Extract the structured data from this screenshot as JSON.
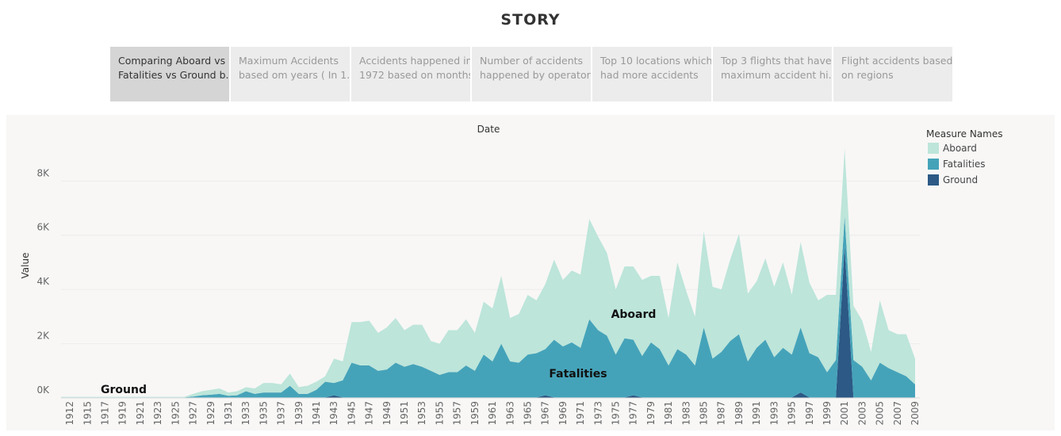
{
  "header": {
    "title": "STORY"
  },
  "tabs": [
    {
      "lines": [
        "Comparing Aboard vs",
        "Fatalities vs Ground b.."
      ],
      "selected": true
    },
    {
      "lines": [
        "Maximum Accidents",
        "based om years ( In 1.."
      ]
    },
    {
      "lines": [
        "Accidents happened in",
        "1972 based on months"
      ]
    },
    {
      "lines": [
        "Number of accidents",
        "happened by operators"
      ]
    },
    {
      "lines": [
        "Top 10 locations which",
        "had more accidents"
      ]
    },
    {
      "lines": [
        "Top 3 flights that have",
        "maximum accident hi.."
      ]
    },
    {
      "lines": [
        "Flight accidents based",
        "on regions"
      ]
    }
  ],
  "chart_data": {
    "type": "area",
    "stacked": true,
    "x_label": "Date",
    "y_label": "Value",
    "legend_title": "Measure Names",
    "legend": "right",
    "grid": true,
    "annotations": [
      "Aboard",
      "Fatalities",
      "Ground"
    ],
    "categories": [
      null,
      "1912",
      null,
      "1915",
      null,
      "1917",
      null,
      "1919",
      null,
      "1921",
      null,
      "1923",
      null,
      "1925",
      null,
      "1927",
      null,
      "1929",
      null,
      "1931",
      null,
      "1933",
      null,
      "1935",
      null,
      "1937",
      null,
      "1939",
      null,
      "1941",
      null,
      "1943",
      null,
      "1945",
      null,
      "1947",
      null,
      "1949",
      null,
      "1951",
      null,
      "1953",
      null,
      "1955",
      null,
      "1957",
      null,
      "1959",
      null,
      "1961",
      null,
      "1963",
      null,
      "1965",
      null,
      "1967",
      null,
      "1969",
      null,
      "1971",
      null,
      "1973",
      null,
      "1975",
      null,
      "1977",
      null,
      "1979",
      null,
      "1981",
      null,
      "1983",
      null,
      "1985",
      null,
      "1987",
      null,
      "1989",
      null,
      "1991",
      null,
      "1993",
      null,
      "1995",
      null,
      "1997",
      null,
      "1999",
      null,
      "2001",
      null,
      "2003",
      null,
      "2005",
      null,
      "2007",
      null,
      "2009"
    ],
    "ylim": [
      0,
      9500
    ],
    "yticks": [
      {
        "value": 0,
        "label": "0K"
      },
      {
        "value": 2000,
        "label": "2K"
      },
      {
        "value": 4000,
        "label": "4K"
      },
      {
        "value": 6000,
        "label": "6K"
      },
      {
        "value": 8000,
        "label": "8K"
      }
    ],
    "series": [
      {
        "name": "Aboard",
        "color": "#bde5da",
        "values": [
          20,
          20,
          20,
          20,
          20,
          20,
          20,
          20,
          20,
          20,
          20,
          20,
          20,
          20,
          20,
          100,
          150,
          180,
          200,
          120,
          150,
          150,
          200,
          350,
          350,
          300,
          450,
          250,
          300,
          300,
          200,
          900,
          700,
          1500,
          1600,
          1650,
          1400,
          1550,
          1650,
          1350,
          1450,
          1550,
          1100,
          1150,
          1550,
          1550,
          1700,
          1400,
          1950,
          1950,
          2500,
          1600,
          1800,
          2200,
          1950,
          2400,
          2950,
          2450,
          2650,
          2700,
          3700,
          3450,
          3050,
          2400,
          2650,
          2700,
          2800,
          2450,
          2700,
          1750,
          3200,
          2350,
          1800,
          3550,
          2650,
          2300,
          3000,
          3700,
          2500,
          2450,
          3000,
          2600,
          3150,
          2200,
          3150,
          2600,
          2100,
          2850,
          2400,
          2500,
          2000,
          1700,
          1050,
          2300,
          1400,
          1400,
          1550,
          950
        ]
      },
      {
        "name": "Fatalities",
        "color": "#45a3b9",
        "values": [
          15,
          15,
          15,
          15,
          15,
          15,
          15,
          15,
          15,
          15,
          15,
          15,
          15,
          15,
          15,
          30,
          80,
          100,
          130,
          60,
          80,
          230,
          130,
          180,
          180,
          180,
          430,
          130,
          130,
          280,
          580,
          450,
          630,
          1280,
          1180,
          1180,
          980,
          1030,
          1280,
          1130,
          1230,
          1130,
          980,
          830,
          930,
          930,
          1180,
          980,
          1580,
          1330,
          1980,
          1330,
          1280,
          1580,
          1630,
          1700,
          2130,
          1880,
          2030,
          1830,
          2880,
          2480,
          2280,
          1580,
          2180,
          2050,
          1530,
          2030,
          1780,
          1180,
          1780,
          1580,
          1180,
          2580,
          1430,
          1680,
          2080,
          2330,
          1330,
          1830,
          2130,
          1480,
          1830,
          1580,
          2400,
          1630,
          1480,
          930,
          1380,
          1100,
          1380,
          1130,
          630,
          1280,
          1080,
          930,
          780,
          480
        ]
      },
      {
        "name": "Ground",
        "color": "#2c5985",
        "values": [
          5,
          5,
          5,
          5,
          5,
          5,
          5,
          5,
          5,
          5,
          5,
          5,
          5,
          5,
          5,
          20,
          20,
          20,
          20,
          20,
          20,
          20,
          20,
          20,
          20,
          20,
          20,
          20,
          20,
          20,
          20,
          100,
          20,
          20,
          20,
          20,
          20,
          20,
          20,
          20,
          20,
          20,
          20,
          20,
          20,
          20,
          20,
          20,
          20,
          20,
          20,
          20,
          20,
          20,
          20,
          100,
          20,
          20,
          20,
          20,
          20,
          20,
          20,
          20,
          20,
          100,
          20,
          20,
          20,
          20,
          20,
          20,
          20,
          20,
          20,
          20,
          20,
          20,
          20,
          20,
          20,
          20,
          20,
          20,
          200,
          20,
          20,
          20,
          20,
          5600,
          20,
          20,
          20,
          20,
          20,
          20,
          20,
          20
        ]
      }
    ]
  }
}
